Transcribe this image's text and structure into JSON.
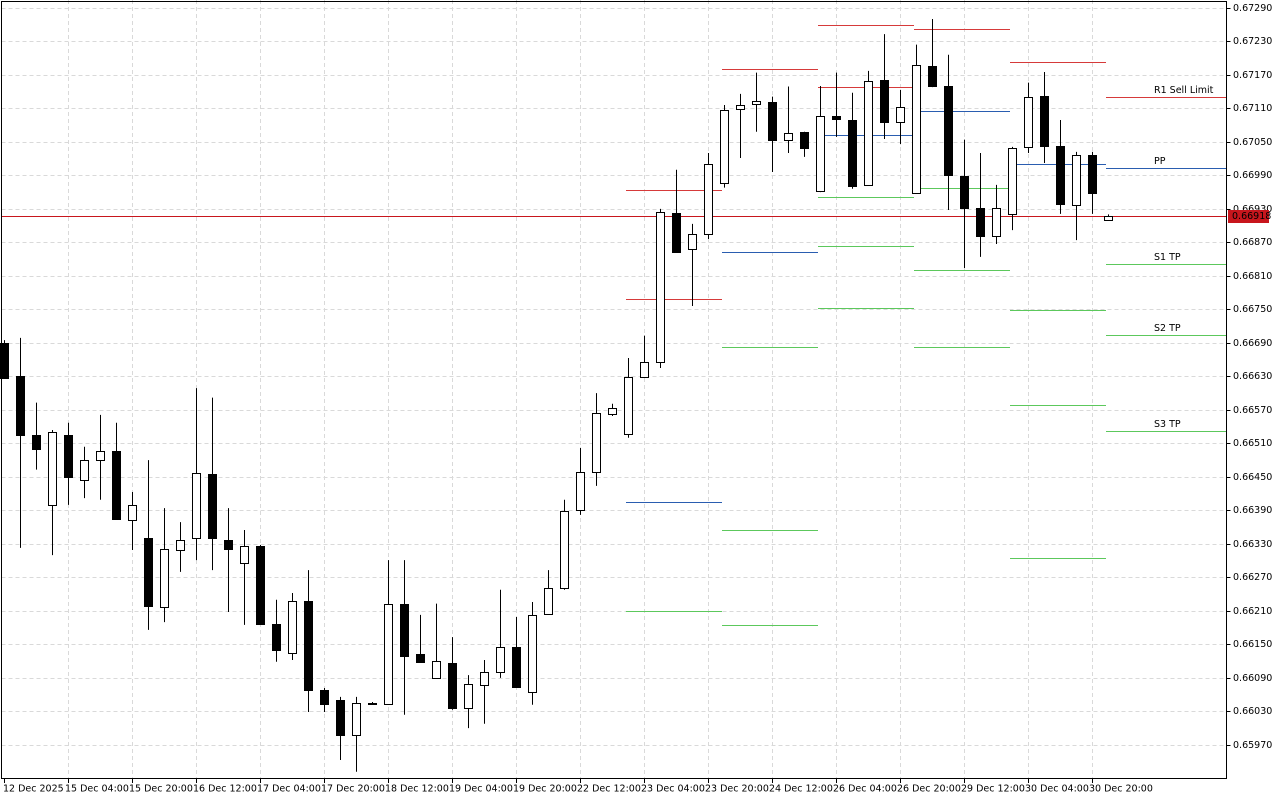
{
  "chart_data": {
    "type": "candlestick",
    "grid": true,
    "up_color": "#ffffff",
    "down_color": "#000000",
    "edge_color": "#000000",
    "ylim": [
      0.65909,
      0.67304
    ],
    "yticks": [
      {
        "value": 0.6729,
        "label": "0.67290"
      },
      {
        "value": 0.6723,
        "label": "0.67230"
      },
      {
        "value": 0.6717,
        "label": "0.67170"
      },
      {
        "value": 0.6711,
        "label": "0.67110"
      },
      {
        "value": 0.6705,
        "label": "0.67050"
      },
      {
        "value": 0.6699,
        "label": "0.66990"
      },
      {
        "value": 0.6693,
        "label": "0.66930"
      },
      {
        "value": 0.6687,
        "label": "0.66870"
      },
      {
        "value": 0.6681,
        "label": "0.66810"
      },
      {
        "value": 0.6675,
        "label": "0.66750"
      },
      {
        "value": 0.6669,
        "label": "0.66690"
      },
      {
        "value": 0.6663,
        "label": "0.66630"
      },
      {
        "value": 0.6657,
        "label": "0.66570"
      },
      {
        "value": 0.6651,
        "label": "0.66510"
      },
      {
        "value": 0.6645,
        "label": "0.66450"
      },
      {
        "value": 0.6639,
        "label": "0.66390"
      },
      {
        "value": 0.6633,
        "label": "0.66330"
      },
      {
        "value": 0.6627,
        "label": "0.66270"
      },
      {
        "value": 0.6621,
        "label": "0.66210"
      },
      {
        "value": 0.6615,
        "label": "0.66150"
      },
      {
        "value": 0.6609,
        "label": "0.66090"
      },
      {
        "value": 0.6603,
        "label": "0.66030"
      },
      {
        "value": 0.6597,
        "label": "0.65970"
      }
    ],
    "categories": [
      "12 Dec 2025",
      null,
      null,
      null,
      "15 Dec 04:00",
      null,
      null,
      null,
      "15 Dec 20:00",
      null,
      null,
      null,
      "16 Dec 12:00",
      null,
      null,
      null,
      "17 Dec 04:00",
      null,
      null,
      null,
      "17 Dec 20:00",
      null,
      null,
      null,
      "18 Dec 12:00",
      null,
      null,
      null,
      "19 Dec 04:00",
      null,
      null,
      null,
      "19 Dec 20:00",
      null,
      null,
      null,
      "22 Dec 12:00",
      null,
      null,
      null,
      "23 Dec 04:00",
      null,
      null,
      null,
      "23 Dec 20:00",
      null,
      null,
      null,
      "24 Dec 12:00",
      null,
      null,
      null,
      "26 Dec 04:00",
      null,
      null,
      null,
      "26 Dec 20:00",
      null,
      null,
      null,
      "29 Dec 12:00",
      null,
      null,
      null,
      "30 Dec 04:00",
      null,
      null,
      null,
      "30 Dec 20:00",
      null
    ],
    "open": [
      0.6669,
      0.66631,
      0.66525,
      0.664,
      0.66525,
      0.66445,
      0.6648,
      0.66497,
      0.66373,
      0.66341,
      0.66217,
      0.66319,
      0.66341,
      0.66455,
      0.66337,
      0.66296,
      0.66326,
      0.66187,
      0.66135,
      0.66228,
      0.66069,
      0.66051,
      0.65988,
      0.66045,
      0.66043,
      0.66223,
      0.66133,
      0.6609,
      0.66117,
      0.66036,
      0.66078,
      0.66101,
      0.66146,
      0.66065,
      0.66205,
      0.66251,
      0.66391,
      0.66459,
      0.66563,
      0.66527,
      0.66629,
      0.66656,
      0.66923,
      0.66858,
      0.66885,
      0.66977,
      0.67109,
      0.67118,
      0.67122,
      0.67054,
      0.67068,
      0.66962,
      0.67097,
      0.67089,
      0.66973,
      0.67161,
      0.67086,
      0.66959,
      0.67186,
      0.6715,
      0.66989,
      0.66932,
      0.66882,
      0.66921,
      0.67041,
      0.67132,
      0.67043,
      0.66937,
      0.67027,
      0.6691
    ],
    "high": [
      0.66695,
      0.66699,
      0.66583,
      0.66534,
      0.66547,
      0.66504,
      0.66561,
      0.66547,
      0.66423,
      0.6648,
      0.66394,
      0.66369,
      0.66609,
      0.66592,
      0.66394,
      0.66355,
      0.66328,
      0.6623,
      0.66242,
      0.66283,
      0.66072,
      0.66056,
      0.66056,
      0.66047,
      0.66301,
      0.66301,
      0.66203,
      0.66223,
      0.66163,
      0.66095,
      0.66122,
      0.66248,
      0.66199,
      0.66226,
      0.66283,
      0.66409,
      0.66502,
      0.666,
      0.66581,
      0.66663,
      0.66703,
      0.6693,
      0.67,
      0.66903,
      0.6703,
      0.67116,
      0.67136,
      0.67174,
      0.67131,
      0.67149,
      0.67068,
      0.6715,
      0.67174,
      0.67138,
      0.67177,
      0.67243,
      0.67143,
      0.67224,
      0.6727,
      0.67206,
      0.67054,
      0.6703,
      0.66973,
      0.67041,
      0.67156,
      0.67175,
      0.67089,
      0.67032,
      0.67032,
      0.6692
    ],
    "low": [
      0.66627,
      0.66323,
      0.66463,
      0.6631,
      0.664,
      0.66412,
      0.66409,
      0.66373,
      0.66319,
      0.66176,
      0.6619,
      0.6628,
      0.66301,
      0.66283,
      0.66208,
      0.66185,
      0.66185,
      0.66119,
      0.66122,
      0.66029,
      0.66029,
      0.65943,
      0.65922,
      0.66042,
      0.66042,
      0.66024,
      0.66117,
      0.6609,
      0.66033,
      0.66,
      0.66008,
      0.6609,
      0.66072,
      0.66042,
      0.66203,
      0.66248,
      0.66382,
      0.66434,
      0.66559,
      0.6652,
      0.66627,
      0.66645,
      0.66851,
      0.66756,
      0.66876,
      0.66968,
      0.67021,
      0.67068,
      0.66996,
      0.6703,
      0.67023,
      0.6696,
      0.67059,
      0.66966,
      0.66971,
      0.67055,
      0.67046,
      0.66957,
      0.67148,
      0.66928,
      0.66824,
      0.66844,
      0.66867,
      0.66892,
      0.6703,
      0.67012,
      0.66921,
      0.66874,
      0.66921,
      0.66909
    ],
    "close": [
      0.66627,
      0.66525,
      0.665,
      0.66531,
      0.6645,
      0.6648,
      0.66497,
      0.66375,
      0.664,
      0.66219,
      0.66321,
      0.66337,
      0.66457,
      0.66341,
      0.66321,
      0.66326,
      0.66187,
      0.6614,
      0.66228,
      0.66069,
      0.66043,
      0.65988,
      0.66045,
      0.66043,
      0.66223,
      0.66129,
      0.66119,
      0.6612,
      0.66036,
      0.66079,
      0.66101,
      0.66146,
      0.66074,
      0.66203,
      0.66251,
      0.66389,
      0.66459,
      0.66565,
      0.66574,
      0.66629,
      0.66656,
      0.66925,
      0.66853,
      0.66885,
      0.67011,
      0.67107,
      0.67116,
      0.67123,
      0.67054,
      0.67066,
      0.67039,
      0.67097,
      0.67091,
      0.66971,
      0.67159,
      0.67086,
      0.67113,
      0.67188,
      0.6715,
      0.66991,
      0.66932,
      0.66882,
      0.66932,
      0.67039,
      0.67131,
      0.67043,
      0.66939,
      0.67027,
      0.66959,
      0.66918
    ],
    "pivots": [
      {
        "start": 39,
        "levels": [
          {
            "value": 0.66964,
            "color": "#d63a3a"
          },
          {
            "value": 0.66769,
            "color": "#d63a3a"
          },
          {
            "value": 0.66405,
            "color": "#2a5db0"
          },
          {
            "value": 0.6621,
            "color": "#5cc85c"
          }
        ]
      },
      {
        "start": 45,
        "levels": [
          {
            "value": 0.67181,
            "color": "#d63a3a"
          },
          {
            "value": 0.66853,
            "color": "#2a5db0"
          },
          {
            "value": 0.66683,
            "color": "#5cc85c"
          },
          {
            "value": 0.66355,
            "color": "#5cc85c"
          },
          {
            "value": 0.66185,
            "color": "#5cc85c"
          }
        ]
      },
      {
        "start": 51,
        "levels": [
          {
            "value": 0.6726,
            "color": "#d63a3a"
          },
          {
            "value": 0.67149,
            "color": "#d63a3a"
          },
          {
            "value": 0.67063,
            "color": "#2a5db0"
          },
          {
            "value": 0.66952,
            "color": "#5cc85c"
          },
          {
            "value": 0.66864,
            "color": "#5cc85c"
          },
          {
            "value": 0.66753,
            "color": "#5cc85c"
          }
        ]
      },
      {
        "start": 57,
        "levels": [
          {
            "value": 0.67252,
            "color": "#d63a3a"
          },
          {
            "value": 0.67106,
            "color": "#2a5db0"
          },
          {
            "value": 0.66968,
            "color": "#5cc85c"
          },
          {
            "value": 0.66821,
            "color": "#5cc85c"
          },
          {
            "value": 0.66683,
            "color": "#5cc85c"
          }
        ]
      },
      {
        "start": 63,
        "levels": [
          {
            "value": 0.67193,
            "color": "#d63a3a"
          },
          {
            "value": 0.67011,
            "color": "#2a5db0"
          },
          {
            "value": 0.66749,
            "color": "#5cc85c"
          },
          {
            "value": 0.66579,
            "color": "#5cc85c"
          },
          {
            "value": 0.66305,
            "color": "#5cc85c"
          }
        ]
      },
      {
        "start": 69,
        "levels": [
          {
            "value": 0.67131,
            "color": "#d63a3a",
            "name": "R1 Sell Limit"
          },
          {
            "value": 0.67003,
            "color": "#2a5db0",
            "name": "PP"
          },
          {
            "value": 0.66832,
            "color": "#5cc85c",
            "name": "S1 TP"
          },
          {
            "value": 0.66704,
            "color": "#5cc85c",
            "name": "S2 TP"
          },
          {
            "value": 0.66532,
            "color": "#5cc85c",
            "name": "S3 TP"
          }
        ]
      }
    ],
    "last_price": 0.66918,
    "last_price_color": "#c8161d"
  }
}
